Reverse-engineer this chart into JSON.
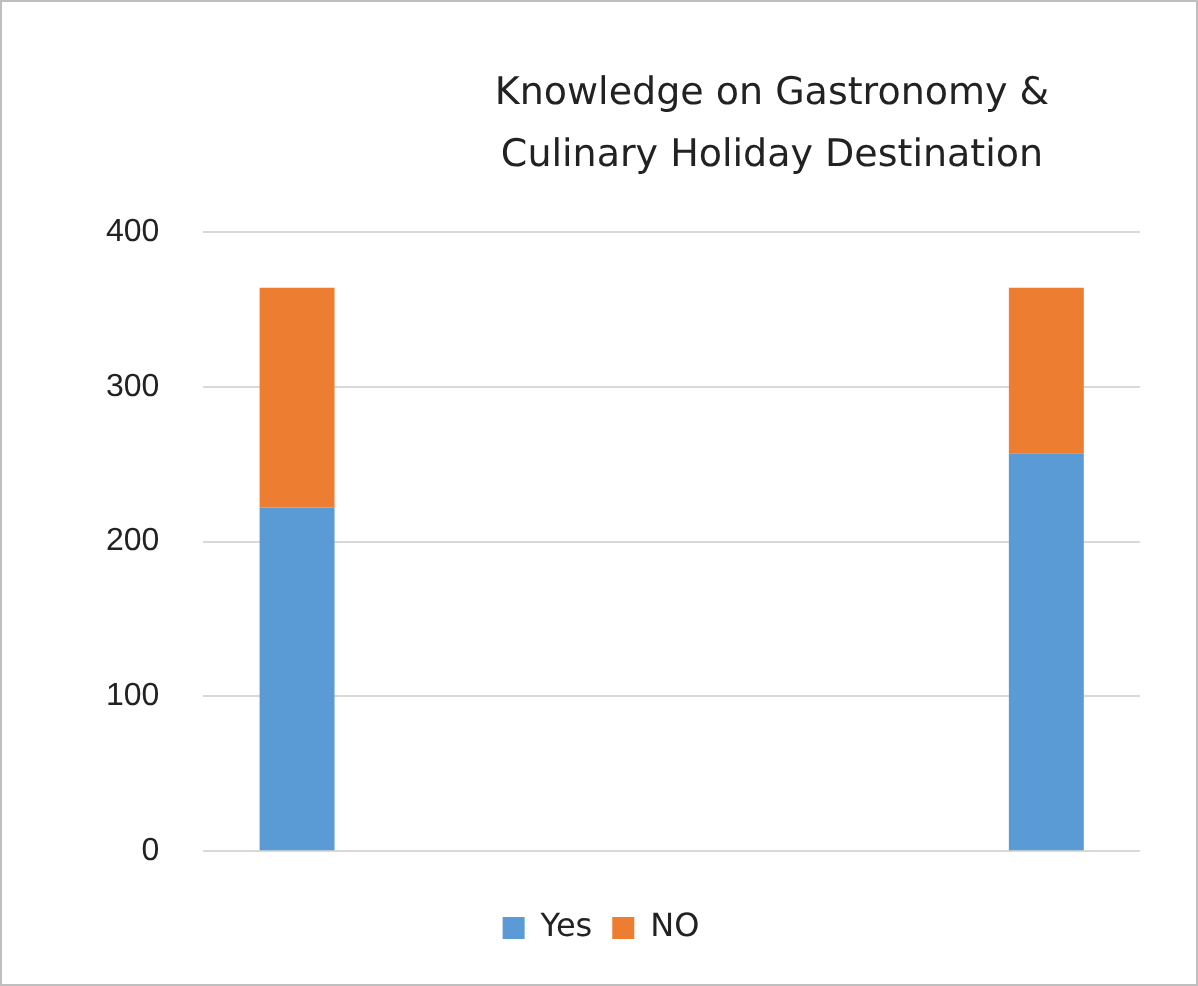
{
  "chart_data": {
    "type": "bar",
    "title": "Knowledge on Gastronomy  & Culinary Holiday Destination",
    "categories": [
      null,
      null,
      null,
      null,
      null
    ],
    "stacked": true,
    "series": [
      {
        "name": "Yes",
        "color": "#5b9bd5",
        "values": [
          222,
          null,
          null,
          null,
          257
        ]
      },
      {
        "name": "NO",
        "color": "#ed7d31",
        "values": [
          142,
          null,
          null,
          null,
          107
        ]
      }
    ],
    "ylim": [
      0,
      400
    ],
    "yticks": [
      0,
      100,
      200,
      300,
      400
    ],
    "grid": "y",
    "legend": "bottom"
  }
}
